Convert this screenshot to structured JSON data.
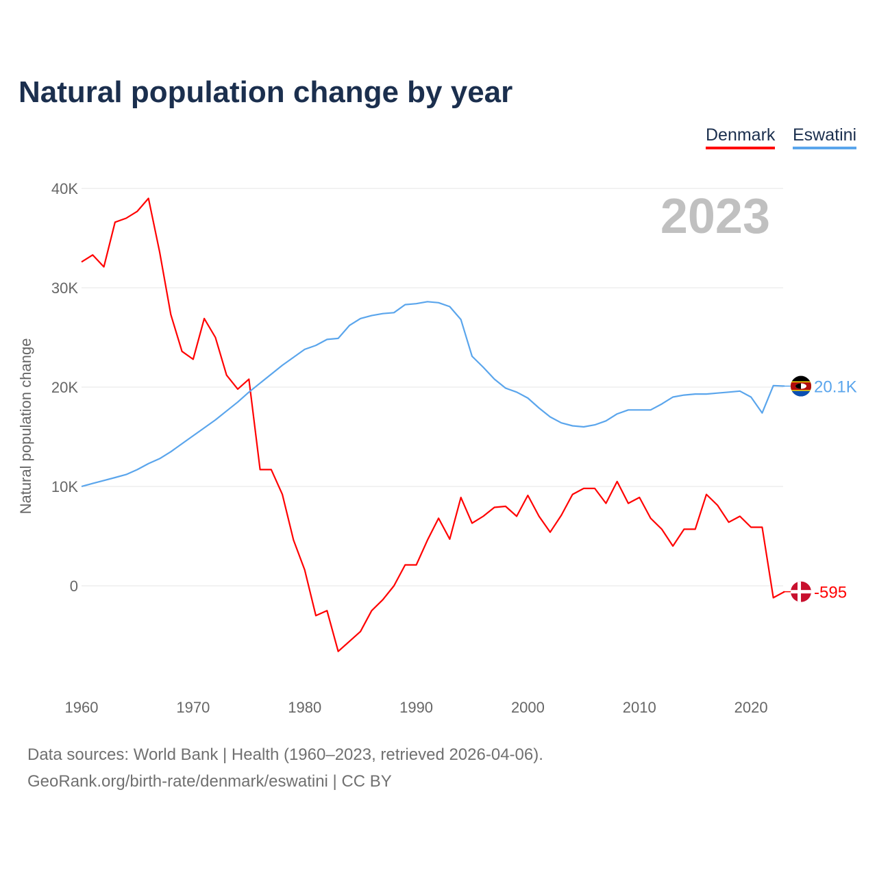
{
  "chart_data": {
    "type": "line",
    "title": "Natural population change by year",
    "xlabel": "",
    "ylabel": "Natural population change",
    "xlim": [
      1960,
      2023
    ],
    "ylim": [
      -10000,
      40000
    ],
    "x_ticks": [
      "1960",
      "1970",
      "1980",
      "1990",
      "2000",
      "2010",
      "2020"
    ],
    "y_ticks": [
      {
        "v": 0,
        "label": "0"
      },
      {
        "v": 10000,
        "label": "10K"
      },
      {
        "v": 20000,
        "label": "20K"
      },
      {
        "v": 30000,
        "label": "30K"
      },
      {
        "v": 40000,
        "label": "40K"
      }
    ],
    "year_watermark": "2023",
    "grid": true,
    "legend_placement": "top-right",
    "x": [
      1960,
      1961,
      1962,
      1963,
      1964,
      1965,
      1966,
      1967,
      1968,
      1969,
      1970,
      1971,
      1972,
      1973,
      1974,
      1975,
      1976,
      1977,
      1978,
      1979,
      1980,
      1981,
      1982,
      1983,
      1984,
      1985,
      1986,
      1987,
      1988,
      1989,
      1990,
      1991,
      1992,
      1993,
      1994,
      1995,
      1996,
      1997,
      1998,
      1999,
      2000,
      2001,
      2002,
      2003,
      2004,
      2005,
      2006,
      2007,
      2008,
      2009,
      2010,
      2011,
      2012,
      2013,
      2014,
      2015,
      2016,
      2017,
      2018,
      2019,
      2020,
      2021,
      2022,
      2023
    ],
    "series": [
      {
        "name": "Denmark",
        "color": "#ff0000",
        "end_label": "-595",
        "flag": "denmark-flag",
        "values": [
          32600,
          33300,
          32100,
          36600,
          37000,
          37700,
          39000,
          33600,
          27300,
          23600,
          22800,
          26900,
          25000,
          21200,
          19800,
          20800,
          11700,
          11700,
          9200,
          4600,
          1600,
          -3000,
          -2500,
          -6600,
          -5600,
          -4600,
          -2500,
          -1400,
          0,
          2100,
          2100,
          4600,
          6800,
          4700,
          8900,
          6300,
          7000,
          7900,
          8000,
          7000,
          9100,
          7000,
          5400,
          7100,
          9200,
          9800,
          9800,
          8300,
          10500,
          8300,
          8900,
          6800,
          5700,
          4000,
          5700,
          5700,
          9200,
          8100,
          6400,
          7000,
          5900,
          5900,
          -1200,
          -595
        ]
      },
      {
        "name": "Eswatini",
        "color": "#5aa5ec",
        "end_label": "20.1K",
        "flag": "eswatini-flag",
        "values": [
          10000,
          10300,
          10600,
          10900,
          11200,
          11700,
          12300,
          12800,
          13500,
          14300,
          15100,
          15900,
          16700,
          17600,
          18500,
          19500,
          20400,
          21300,
          22200,
          23000,
          23800,
          24200,
          24800,
          24900,
          26200,
          26900,
          27200,
          27400,
          27500,
          28300,
          28400,
          28600,
          28500,
          28100,
          26800,
          23100,
          22000,
          20800,
          19900,
          19500,
          18900,
          17900,
          17000,
          16400,
          16100,
          16000,
          16200,
          16600,
          17300,
          17700,
          17700,
          17700,
          18300,
          19000,
          19200,
          19300,
          19300,
          19400,
          19500,
          19600,
          19000,
          17400,
          20150,
          20100
        ]
      }
    ]
  },
  "sources": {
    "line1": "Data sources: World Bank | Health (1960–2023, retrieved 2026-04-06).",
    "line2": "GeoRank.org/birth-rate/denmark/eswatini | CC BY"
  }
}
